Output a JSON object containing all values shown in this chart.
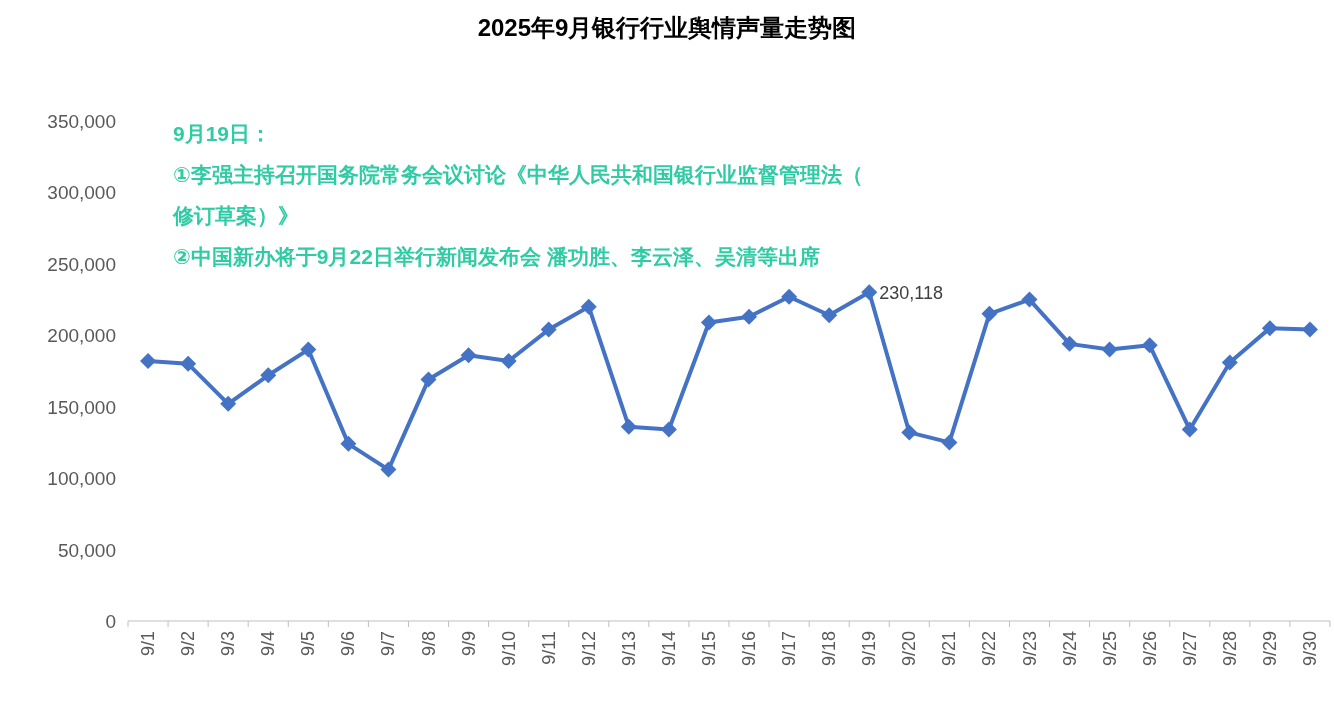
{
  "chart_data": {
    "type": "line",
    "title": "2025年9月银行行业舆情声量走势图",
    "annotations": [
      "9月19日：",
      "①李强主持召开国务院常务会议讨论《中华人民共和国银行业监督管理法（修订草案）》",
      "②中国新办将于9月22日举行新闻发布会 潘功胜、李云泽、吴清等出席"
    ],
    "categories": [
      "9/1",
      "9/2",
      "9/3",
      "9/4",
      "9/5",
      "9/6",
      "9/7",
      "9/8",
      "9/9",
      "9/10",
      "9/11",
      "9/12",
      "9/13",
      "9/14",
      "9/15",
      "9/16",
      "9/17",
      "9/18",
      "9/19",
      "9/20",
      "9/21",
      "9/22",
      "9/23",
      "9/24",
      "9/25",
      "9/26",
      "9/27",
      "9/28",
      "9/29",
      "9/30"
    ],
    "values": [
      182000,
      180000,
      152000,
      172000,
      190000,
      124000,
      106000,
      169000,
      186000,
      182000,
      204000,
      220000,
      136000,
      134000,
      209000,
      213000,
      227000,
      214000,
      230118,
      132000,
      125000,
      215000,
      225000,
      194000,
      190000,
      193000,
      134000,
      181000,
      205000,
      204000
    ],
    "value_labels": [
      null,
      null,
      null,
      null,
      null,
      null,
      null,
      null,
      null,
      null,
      null,
      null,
      null,
      null,
      null,
      null,
      null,
      null,
      "230,118",
      null,
      null,
      null,
      null,
      null,
      null,
      null,
      null,
      null,
      null,
      null
    ],
    "color": "#4472c4",
    "marker": "diamond",
    "line_style": "solid",
    "grid": false,
    "ylim": [
      0,
      350000
    ],
    "yticks": [
      {
        "value": 0,
        "label": "0"
      },
      {
        "value": 50000,
        "label": "50,000"
      },
      {
        "value": 100000,
        "label": "100,000"
      },
      {
        "value": 150000,
        "label": "150,000"
      },
      {
        "value": 200000,
        "label": "200,000"
      },
      {
        "value": 250000,
        "label": "250,000"
      },
      {
        "value": 300000,
        "label": "300,000"
      },
      {
        "value": 350000,
        "label": "350,000"
      }
    ]
  }
}
